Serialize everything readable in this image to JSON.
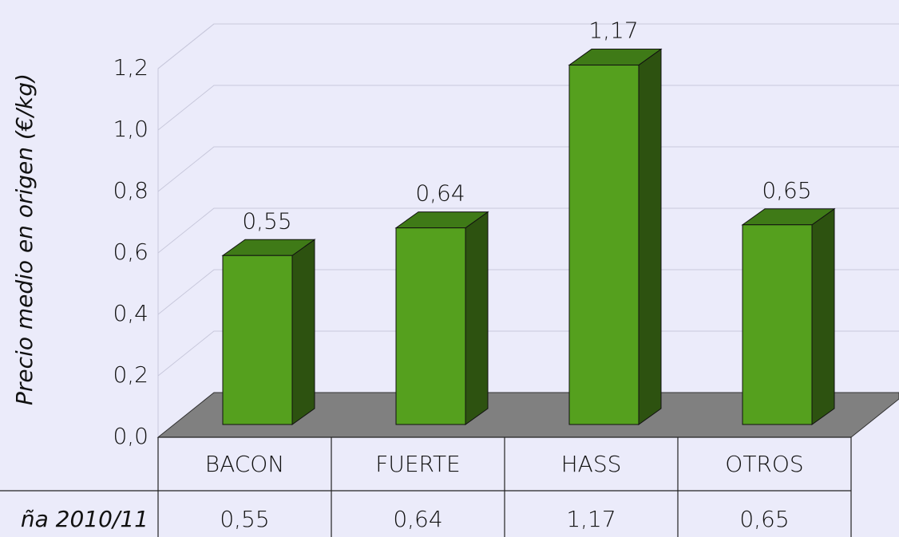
{
  "chart_data": {
    "type": "bar3d",
    "y_label": "Precio medio en origen (€/kg)",
    "categories": [
      "BACON",
      "FUERTE",
      "HASS",
      "OTROS"
    ],
    "series": [
      {
        "name": "ña 2010/11",
        "color": "#55a01e",
        "values": [
          0.55,
          0.64,
          1.17,
          0.65
        ],
        "value_labels": [
          "0,55",
          "0,64",
          "1,17",
          "0,65"
        ]
      }
    ],
    "ylim": [
      0,
      1.2
    ],
    "yticks": [
      {
        "value": 0,
        "label": "0,0"
      },
      {
        "value": 0.2,
        "label": "0,2"
      },
      {
        "value": 0.4,
        "label": "0,4"
      },
      {
        "value": 0.6,
        "label": "0,6"
      },
      {
        "value": 0.8,
        "label": "0,8"
      },
      {
        "value": 1.0,
        "label": "1,0"
      },
      {
        "value": 1.2,
        "label": "1,2"
      }
    ],
    "grid": true
  }
}
